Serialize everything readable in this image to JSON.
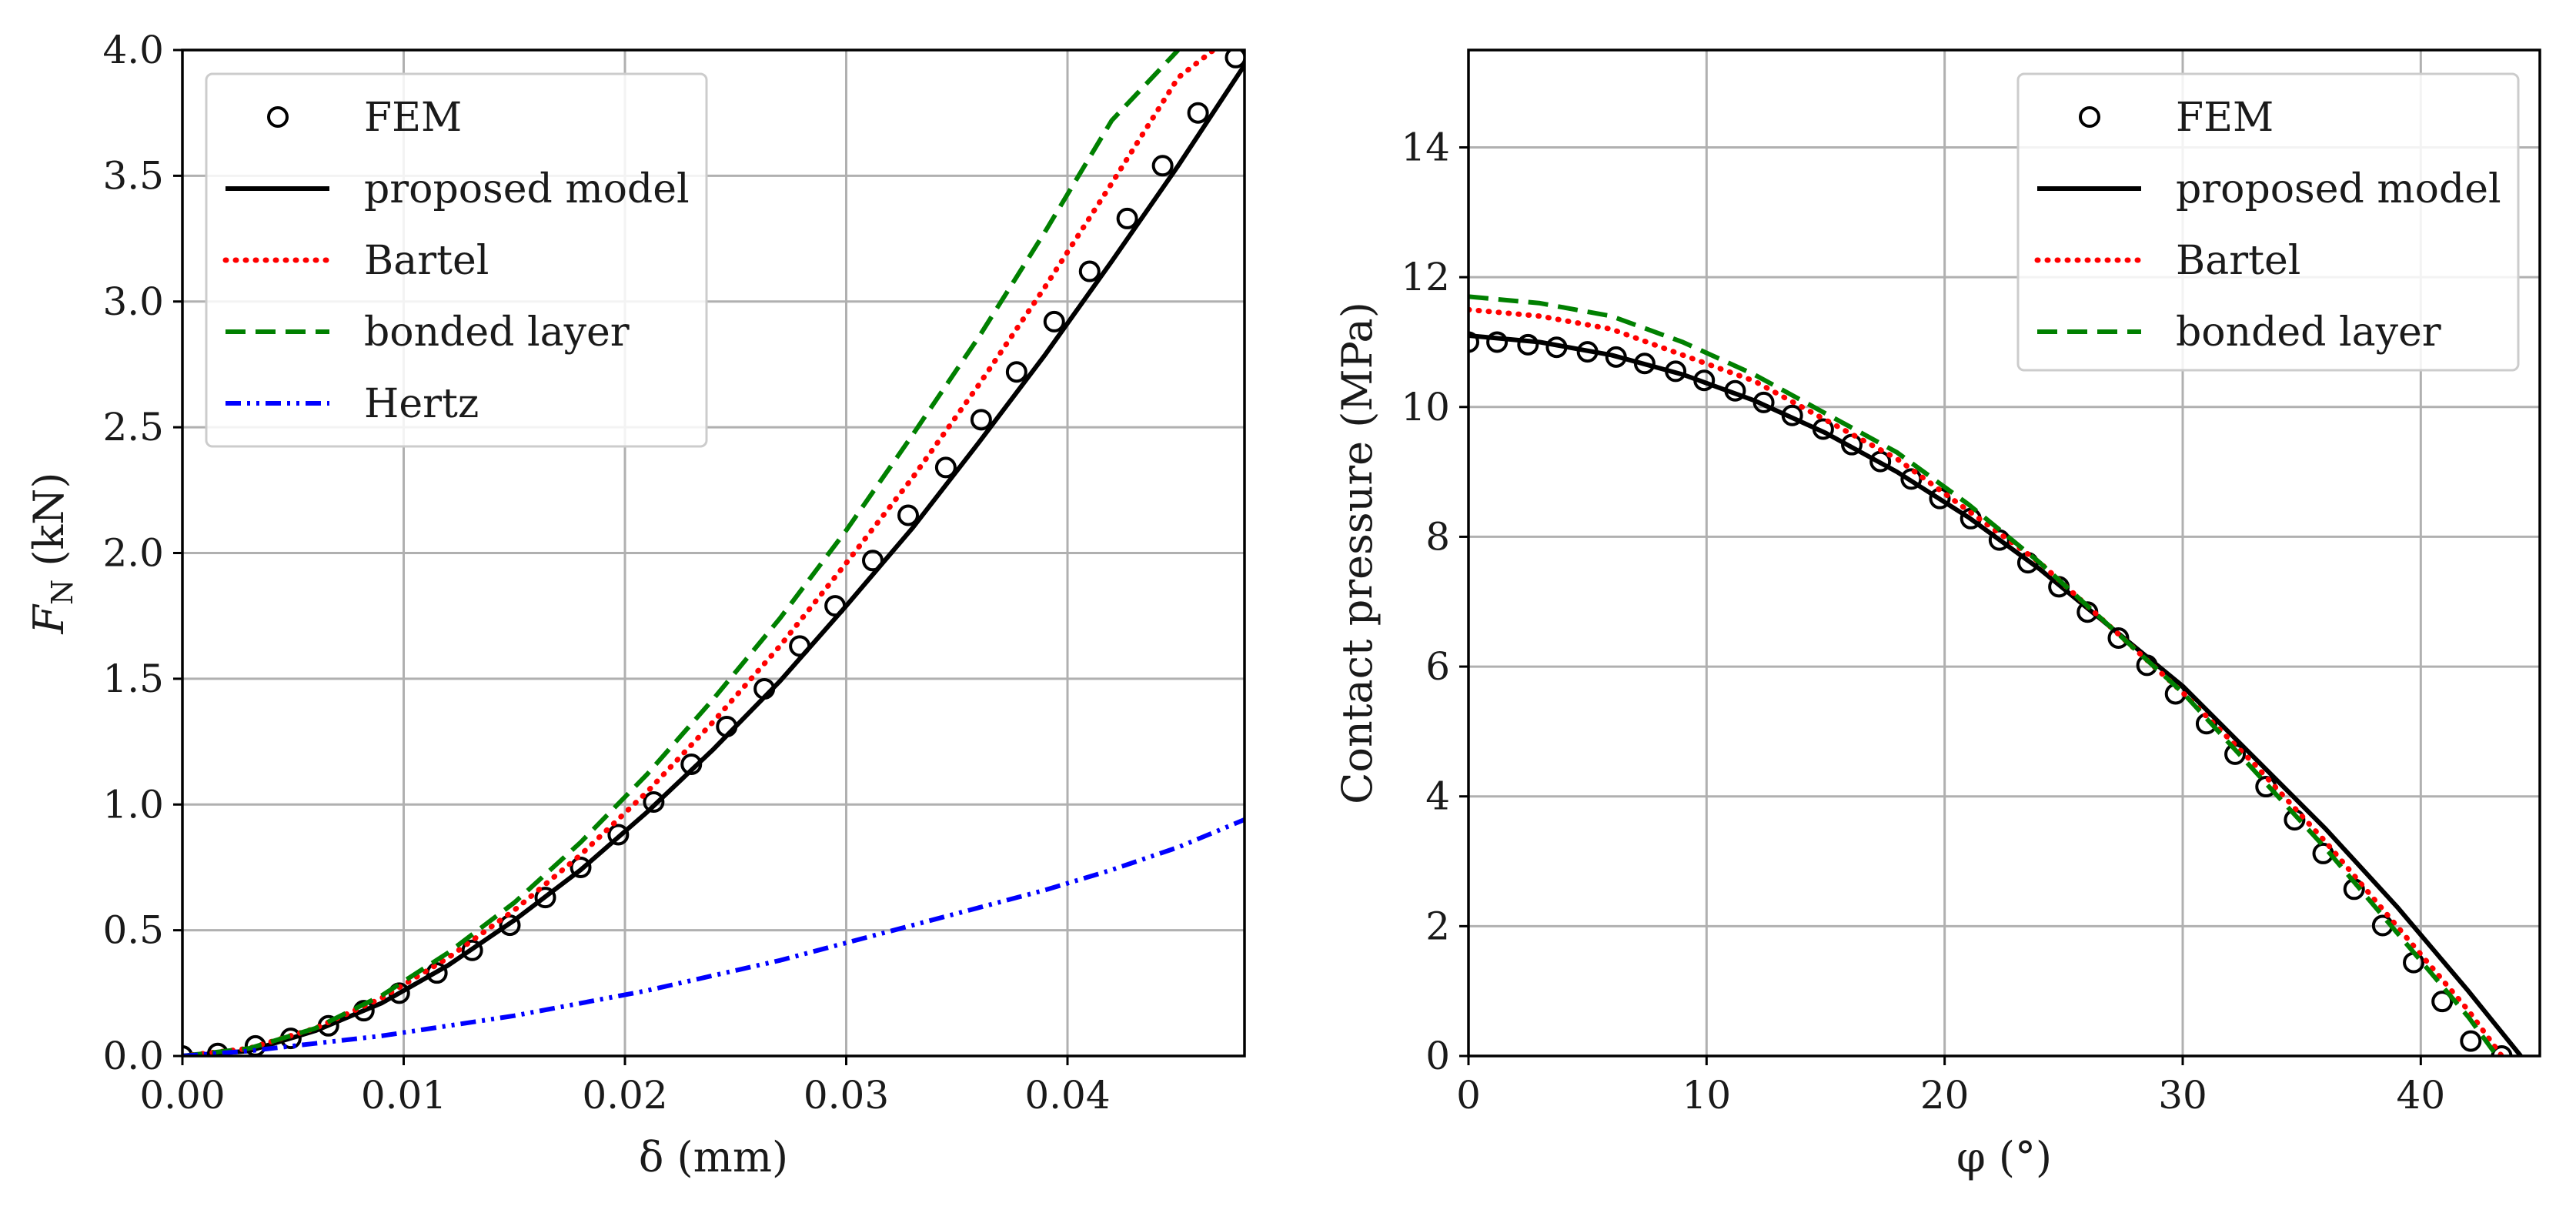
{
  "chart_data": [
    {
      "type": "line",
      "xlabel": "δ (mm)",
      "ylabel": "F_N (kN)",
      "ylabel_main": "F",
      "ylabel_sub": "N",
      "ylabel_unit": " (kN)",
      "xlim": [
        0,
        0.048
      ],
      "ylim": [
        0,
        4.0
      ],
      "grid": true,
      "legend_position": "top-left",
      "x_ticks": [
        0.0,
        0.01,
        0.02,
        0.03,
        0.04
      ],
      "x_tick_labels": [
        "0.00",
        "0.01",
        "0.02",
        "0.03",
        "0.04"
      ],
      "y_ticks": [
        0.0,
        0.5,
        1.0,
        1.5,
        2.0,
        2.5,
        3.0,
        3.5,
        4.0
      ],
      "y_tick_labels": [
        "0.0",
        "0.5",
        "1.0",
        "1.5",
        "2.0",
        "2.5",
        "3.0",
        "3.5",
        "4.0"
      ],
      "series": [
        {
          "name": "FEM",
          "style": "markers",
          "color": "#000000",
          "x": [
            0,
            0.0016,
            0.0033,
            0.0049,
            0.0066,
            0.0082,
            0.0098,
            0.0115,
            0.0131,
            0.0148,
            0.0164,
            0.018,
            0.0197,
            0.0213,
            0.023,
            0.0246,
            0.0263,
            0.0279,
            0.0295,
            0.0312,
            0.0328,
            0.0345,
            0.0361,
            0.0377,
            0.0394,
            0.041,
            0.0427,
            0.0443,
            0.0459,
            0.0476
          ],
          "y": [
            0,
            0.01,
            0.04,
            0.07,
            0.12,
            0.18,
            0.25,
            0.33,
            0.42,
            0.52,
            0.63,
            0.75,
            0.88,
            1.01,
            1.16,
            1.31,
            1.46,
            1.63,
            1.79,
            1.97,
            2.15,
            2.34,
            2.53,
            2.72,
            2.92,
            3.12,
            3.33,
            3.54,
            3.75,
            3.97
          ]
        },
        {
          "name": "proposed model",
          "style": "solid",
          "color": "#000000",
          "x": [
            0,
            0.003,
            0.006,
            0.009,
            0.012,
            0.015,
            0.018,
            0.021,
            0.024,
            0.027,
            0.03,
            0.033,
            0.036,
            0.039,
            0.042,
            0.045,
            0.048
          ],
          "y": [
            0,
            0.02,
            0.1,
            0.21,
            0.36,
            0.54,
            0.74,
            0.97,
            1.22,
            1.49,
            1.79,
            2.1,
            2.44,
            2.79,
            3.16,
            3.54,
            3.94
          ]
        },
        {
          "name": "Bartel",
          "style": "dotted",
          "color": "#ff0000",
          "x": [
            0,
            0.003,
            0.006,
            0.009,
            0.012,
            0.015,
            0.018,
            0.021,
            0.024,
            0.027,
            0.03,
            0.033,
            0.036,
            0.039,
            0.042,
            0.045,
            0.0466
          ],
          "y": [
            0,
            0.03,
            0.11,
            0.23,
            0.39,
            0.58,
            0.8,
            1.05,
            1.33,
            1.63,
            1.96,
            2.3,
            2.67,
            3.06,
            3.47,
            3.89,
            4.0
          ]
        },
        {
          "name": "bonded layer",
          "style": "dashed",
          "color": "#008000",
          "x": [
            0,
            0.003,
            0.006,
            0.009,
            0.012,
            0.015,
            0.018,
            0.021,
            0.024,
            0.027,
            0.03,
            0.033,
            0.036,
            0.039,
            0.042,
            0.045
          ],
          "y": [
            0,
            0.03,
            0.11,
            0.24,
            0.41,
            0.61,
            0.85,
            1.12,
            1.42,
            1.74,
            2.09,
            2.47,
            2.86,
            3.28,
            3.72,
            4.0
          ]
        },
        {
          "name": "Hertz",
          "style": "dashdot",
          "color": "#0000ff",
          "x": [
            0,
            0.003,
            0.006,
            0.009,
            0.012,
            0.015,
            0.018,
            0.021,
            0.024,
            0.027,
            0.03,
            0.033,
            0.036,
            0.039,
            0.042,
            0.045,
            0.048
          ],
          "y": [
            0,
            0.02,
            0.05,
            0.08,
            0.12,
            0.16,
            0.21,
            0.26,
            0.32,
            0.38,
            0.45,
            0.52,
            0.59,
            0.66,
            0.74,
            0.83,
            0.94
          ]
        }
      ]
    },
    {
      "type": "line",
      "xlabel": "φ (°)",
      "ylabel": "Contact pressure (MPa)",
      "xlim": [
        0,
        45
      ],
      "ylim": [
        0,
        15.5
      ],
      "grid": true,
      "legend_position": "top-right",
      "x_ticks": [
        0,
        10,
        20,
        30,
        40
      ],
      "x_tick_labels": [
        "0",
        "10",
        "20",
        "30",
        "40"
      ],
      "y_ticks": [
        0,
        2,
        4,
        6,
        8,
        10,
        12,
        14
      ],
      "y_tick_labels": [
        "0",
        "2",
        "4",
        "6",
        "8",
        "10",
        "12",
        "14"
      ],
      "series": [
        {
          "name": "FEM",
          "style": "markers",
          "color": "#000000",
          "x": [
            0,
            1.2,
            2.5,
            3.7,
            5.0,
            6.2,
            7.4,
            8.7,
            9.9,
            11.2,
            12.4,
            13.6,
            14.9,
            16.1,
            17.3,
            18.6,
            19.8,
            21.1,
            22.3,
            23.5,
            24.8,
            26.0,
            27.3,
            28.5,
            29.7,
            31.0,
            32.2,
            33.5,
            34.7,
            35.9,
            37.2,
            38.4,
            39.7,
            40.9,
            42.1,
            43.4
          ],
          "y": [
            11.0,
            11.0,
            10.96,
            10.92,
            10.85,
            10.77,
            10.67,
            10.55,
            10.41,
            10.25,
            10.07,
            9.87,
            9.66,
            9.42,
            9.16,
            8.89,
            8.59,
            8.28,
            7.95,
            7.6,
            7.23,
            6.84,
            6.44,
            6.02,
            5.58,
            5.12,
            4.65,
            4.15,
            3.64,
            3.12,
            2.57,
            2.01,
            1.44,
            0.84,
            0.23,
            0
          ]
        },
        {
          "name": "proposed model",
          "style": "solid",
          "color": "#000000",
          "x": [
            0,
            3,
            6,
            9,
            12,
            15,
            18,
            21,
            24,
            27,
            30,
            33,
            36,
            39,
            42,
            44.2
          ],
          "y": [
            11.1,
            11.0,
            10.8,
            10.5,
            10.1,
            9.6,
            9.0,
            8.3,
            7.5,
            6.6,
            5.7,
            4.6,
            3.5,
            2.3,
            1.0,
            0
          ]
        },
        {
          "name": "Bartel",
          "style": "dotted",
          "color": "#ff0000",
          "x": [
            0,
            3,
            6,
            9,
            12,
            15,
            18,
            21,
            24,
            27,
            30,
            33,
            36,
            39,
            42,
            43.4
          ],
          "y": [
            11.5,
            11.4,
            11.2,
            10.8,
            10.4,
            9.8,
            9.2,
            8.4,
            7.6,
            6.6,
            5.6,
            4.5,
            3.3,
            2.0,
            0.7,
            0
          ]
        },
        {
          "name": "bonded layer",
          "style": "dashed",
          "color": "#008000",
          "x": [
            0,
            3,
            6,
            9,
            12,
            15,
            18,
            21,
            24,
            27,
            30,
            33,
            36,
            39,
            42,
            43.2
          ],
          "y": [
            11.7,
            11.6,
            11.4,
            11.0,
            10.5,
            9.9,
            9.3,
            8.5,
            7.6,
            6.6,
            5.6,
            4.4,
            3.2,
            1.9,
            0.6,
            0
          ]
        }
      ]
    }
  ]
}
